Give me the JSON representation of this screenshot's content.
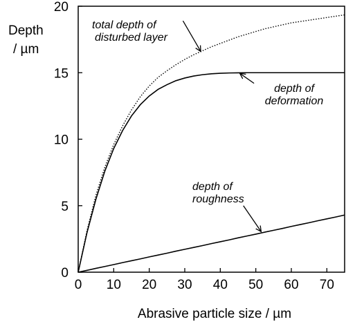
{
  "chart_data": {
    "type": "line",
    "title": "",
    "xlabel": "Abrasive particle size / µm",
    "ylabel_line1": "Depth",
    "ylabel_line2": "/ µm",
    "xlim": [
      0,
      75
    ],
    "ylim": [
      0,
      20
    ],
    "x_ticks": [
      "0",
      "10",
      "20",
      "30",
      "40",
      "50",
      "60",
      "70"
    ],
    "y_ticks": [
      "0",
      "5",
      "10",
      "15",
      "20"
    ],
    "grid": false,
    "legend": "none",
    "x": [
      0,
      2.5,
      5,
      7.5,
      10,
      12.5,
      15,
      17.5,
      20,
      22.5,
      25,
      27.5,
      30,
      32.5,
      35,
      37.5,
      40,
      42.5,
      45,
      47.5,
      50,
      52.5,
      55,
      57.5,
      60,
      62.5,
      65,
      67.5,
      70,
      72.5,
      75
    ],
    "series": [
      {
        "id": "total",
        "style": "dotted",
        "values": [
          0,
          3.15,
          5.8,
          7.9,
          9.6,
          11.0,
          12.2,
          13.2,
          14.0,
          14.65,
          15.15,
          15.6,
          16.0,
          16.35,
          16.65,
          16.95,
          17.2,
          17.45,
          17.7,
          17.9,
          18.1,
          18.3,
          18.45,
          18.6,
          18.75,
          18.85,
          18.95,
          19.05,
          19.15,
          19.25,
          19.35
        ]
      },
      {
        "id": "deformation",
        "style": "solid",
        "values": [
          0,
          3.0,
          5.5,
          7.6,
          9.3,
          10.65,
          11.75,
          12.6,
          13.25,
          13.75,
          14.1,
          14.4,
          14.6,
          14.75,
          14.85,
          14.92,
          14.96,
          14.98,
          14.99,
          15.0,
          15.0,
          15.0,
          15.0,
          15.0,
          15.0,
          15.0,
          15.0,
          15.0,
          15.0,
          15.0,
          15.0
        ]
      },
      {
        "id": "roughness",
        "style": "solid",
        "values": [
          0,
          0.14,
          0.29,
          0.43,
          0.57,
          0.72,
          0.86,
          1.0,
          1.15,
          1.29,
          1.43,
          1.58,
          1.72,
          1.86,
          2.0,
          2.15,
          2.29,
          2.43,
          2.58,
          2.72,
          2.86,
          3.01,
          3.15,
          3.29,
          3.44,
          3.58,
          3.72,
          3.87,
          4.01,
          4.15,
          4.3
        ]
      }
    ],
    "annotations": [
      {
        "id": "total",
        "line1": "total depth of",
        "line2": "disturbed layer",
        "arrow_from": [
          29.5,
          18.9
        ],
        "arrow_to": [
          34.5,
          16.6
        ]
      },
      {
        "id": "deformation",
        "line1": "depth of",
        "line2": "deformation",
        "arrow_from": [
          49.5,
          14.2
        ],
        "arrow_to": [
          45.5,
          14.95
        ]
      },
      {
        "id": "roughness",
        "line1": "depth of",
        "line2": "roughness",
        "arrow_from": [
          46.5,
          5.0
        ],
        "arrow_to": [
          51.5,
          3.05
        ]
      }
    ]
  }
}
